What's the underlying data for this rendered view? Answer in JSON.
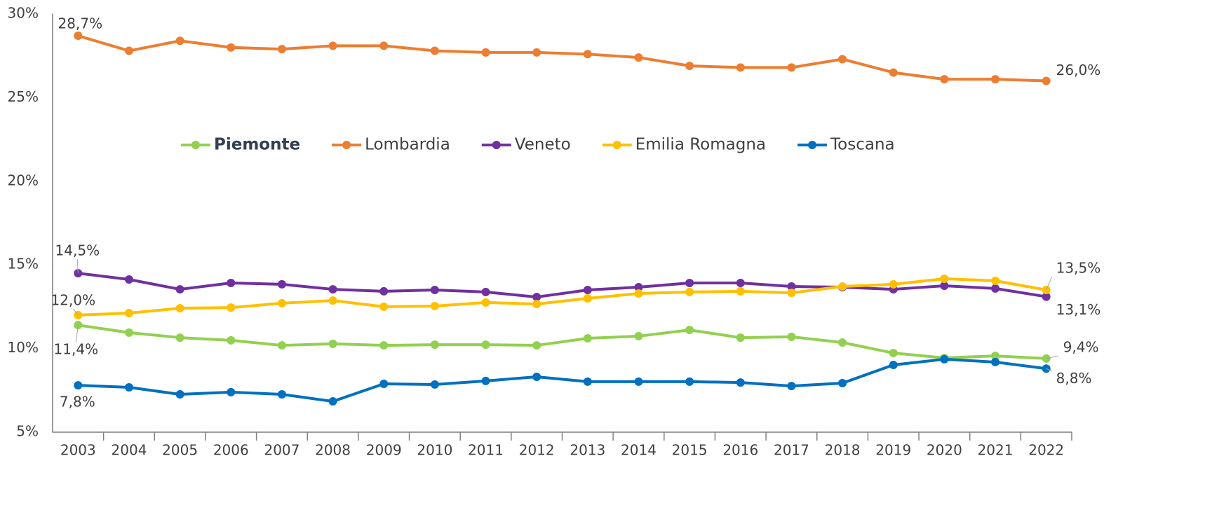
{
  "chart_data": {
    "type": "line",
    "categories": [
      "2003",
      "2004",
      "2005",
      "2006",
      "2007",
      "2008",
      "2009",
      "2010",
      "2011",
      "2012",
      "2013",
      "2014",
      "2015",
      "2016",
      "2017",
      "2018",
      "2019",
      "2020",
      "2021",
      "2022"
    ],
    "ylim": [
      5,
      30
    ],
    "yticks": [
      {
        "value": 5,
        "label": "5%"
      },
      {
        "value": 10,
        "label": "10%"
      },
      {
        "value": 15,
        "label": "15%"
      },
      {
        "value": 20,
        "label": "20%"
      },
      {
        "value": 25,
        "label": "25%"
      },
      {
        "value": 30,
        "label": "30%"
      }
    ],
    "grid": false,
    "legend": "top",
    "series": [
      {
        "name": "Piemonte",
        "bold": true,
        "color": "#92d050",
        "values": [
          11.4,
          10.95,
          10.65,
          10.49,
          10.19,
          10.28,
          10.19,
          10.23,
          10.23,
          10.19,
          10.61,
          10.74,
          11.11,
          10.65,
          10.7,
          10.36,
          9.73,
          9.44,
          9.56,
          9.4
        ],
        "value_labels": [
          "11,4%",
          null,
          null,
          null,
          null,
          null,
          null,
          null,
          null,
          null,
          null,
          null,
          null,
          null,
          null,
          null,
          null,
          null,
          null,
          "9,4%"
        ]
      },
      {
        "name": "Lombardia",
        "color": "#ed7d31",
        "values": [
          28.7,
          27.8,
          28.4,
          28.0,
          27.9,
          28.1,
          28.1,
          27.8,
          27.7,
          27.7,
          27.6,
          27.4,
          26.9,
          26.8,
          26.8,
          27.3,
          26.5,
          26.1,
          26.1,
          26.0
        ],
        "value_labels": [
          "28,7%",
          null,
          null,
          null,
          null,
          null,
          null,
          null,
          null,
          null,
          null,
          null,
          null,
          null,
          null,
          null,
          null,
          null,
          null,
          "26,0%"
        ]
      },
      {
        "name": "Veneto",
        "color": "#7030a0",
        "values": [
          14.5,
          14.13,
          13.54,
          13.92,
          13.84,
          13.54,
          13.42,
          13.5,
          13.38,
          13.08,
          13.5,
          13.67,
          13.92,
          13.92,
          13.71,
          13.67,
          13.54,
          13.75,
          13.59,
          13.1
        ],
        "value_labels": [
          "14,5%",
          null,
          null,
          null,
          null,
          null,
          null,
          null,
          null,
          null,
          null,
          null,
          null,
          null,
          null,
          null,
          null,
          null,
          null,
          "13,1%"
        ]
      },
      {
        "name": "Emilia Romagna",
        "color": "#ffc000",
        "values": [
          12.0,
          12.12,
          12.41,
          12.45,
          12.71,
          12.87,
          12.5,
          12.54,
          12.75,
          12.66,
          13.0,
          13.29,
          13.38,
          13.42,
          13.33,
          13.71,
          13.84,
          14.17,
          14.05,
          13.5
        ],
        "value_labels": [
          "12,0%",
          null,
          null,
          null,
          null,
          null,
          null,
          null,
          null,
          null,
          null,
          null,
          null,
          null,
          null,
          null,
          null,
          null,
          null,
          "13,5%"
        ]
      },
      {
        "name": "Toscana",
        "color": "#0070c0",
        "values": [
          7.8,
          7.68,
          7.26,
          7.39,
          7.26,
          6.84,
          7.89,
          7.85,
          8.06,
          8.31,
          8.02,
          8.02,
          8.02,
          7.97,
          7.76,
          7.93,
          9.02,
          9.36,
          9.19,
          8.8
        ],
        "value_labels": [
          "7,8%",
          null,
          null,
          null,
          null,
          null,
          null,
          null,
          null,
          null,
          null,
          null,
          null,
          null,
          null,
          null,
          null,
          null,
          null,
          "8,8%"
        ]
      }
    ]
  }
}
